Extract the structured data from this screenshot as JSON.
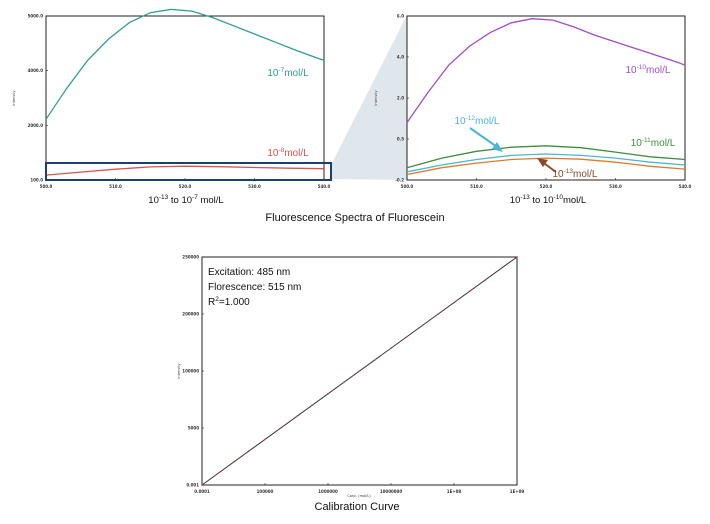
{
  "figure_title": "Fluorescence Spectra of Fluorescein",
  "chart_data": [
    {
      "type": "line",
      "caption": "10-13 to 10-7 mol/L",
      "caption_parts": {
        "a": "10",
        "a_exp": "-13",
        "mid": " to 10",
        "b_exp": "-7",
        "unit": " mol/L"
      },
      "xlim": [
        500,
        540
      ],
      "ylim": [
        0,
        5000
      ],
      "x_ticks": [
        "500.0",
        "510.0",
        "520.0",
        "530.0",
        "540.0"
      ],
      "y_ticks": [
        "5000.0",
        "4000.0",
        "2000.0",
        "100.0"
      ],
      "ylabel": "Intensity",
      "series": [
        {
          "name": "10-7mol/L",
          "base": "10",
          "exp": "-7",
          "unit": "mol/L",
          "color": "#2e9e8e",
          "x": [
            500,
            503,
            506,
            509,
            512,
            515,
            518,
            521,
            524,
            527,
            530,
            533,
            536,
            539,
            540
          ],
          "y": [
            1850,
            2800,
            3650,
            4300,
            4800,
            5100,
            5200,
            5150,
            4950,
            4700,
            4450,
            4200,
            3950,
            3720,
            3650
          ]
        },
        {
          "name": "10-8mol/L",
          "base": "10",
          "exp": "-8",
          "unit": "mol/L",
          "color": "#d9534f",
          "x": [
            500,
            505,
            510,
            515,
            520,
            525,
            530,
            535,
            540
          ],
          "y": [
            150,
            240,
            330,
            400,
            420,
            405,
            380,
            360,
            345
          ]
        }
      ]
    },
    {
      "type": "line",
      "caption": "10-13 to 10-10mol/L",
      "caption_parts": {
        "a": "10",
        "a_exp": "-13",
        "mid": " to 10",
        "b_exp": "-10",
        "unit": "mol/L"
      },
      "xlim": [
        500,
        540
      ],
      "ylim": [
        0,
        6
      ],
      "x_ticks": [
        "500.0",
        "510.0",
        "520.0",
        "530.0",
        "540.0"
      ],
      "y_ticks": [
        "6.0",
        "4.0",
        "2.0",
        "0.5",
        "-0.2"
      ],
      "ylabel": "Intensity",
      "series": [
        {
          "name": "10-10mol/L",
          "base": "10",
          "exp": "-10",
          "unit": "mol/L",
          "color": "#a64cc4",
          "x": [
            500,
            503,
            506,
            509,
            512,
            515,
            518,
            521,
            524,
            527,
            530,
            533,
            536,
            539,
            540
          ],
          "y": [
            2.1,
            3.2,
            4.2,
            4.9,
            5.4,
            5.75,
            5.9,
            5.85,
            5.6,
            5.3,
            5.05,
            4.8,
            4.55,
            4.3,
            4.2
          ]
        },
        {
          "name": "10-11mol/L",
          "base": "10",
          "exp": "-11",
          "unit": "mol/L",
          "color": "#3e8e3e",
          "x": [
            500,
            505,
            510,
            515,
            520,
            525,
            530,
            535,
            540
          ],
          "y": [
            0.45,
            0.8,
            1.05,
            1.2,
            1.25,
            1.18,
            1.02,
            0.85,
            0.75
          ]
        },
        {
          "name": "10-12mol/L",
          "base": "10",
          "exp": "-12",
          "unit": "mol/L",
          "color": "#4bb5d6",
          "x": [
            500,
            505,
            510,
            515,
            520,
            525,
            530,
            535,
            540
          ],
          "y": [
            0.3,
            0.55,
            0.75,
            0.9,
            0.95,
            0.9,
            0.8,
            0.65,
            0.55
          ]
        },
        {
          "name": "10-13mol/L",
          "base": "10",
          "exp": "-13",
          "unit": "mol/L",
          "color": "#e07b2a",
          "x": [
            500,
            505,
            510,
            515,
            520,
            525,
            530,
            535,
            540
          ],
          "y": [
            0.2,
            0.45,
            0.62,
            0.75,
            0.8,
            0.76,
            0.65,
            0.5,
            0.4
          ]
        }
      ]
    },
    {
      "type": "scatter",
      "title": "Calibration Curve",
      "xlim": [
        0,
        200000
      ],
      "ylim": [
        0,
        250000
      ],
      "x_ticks": [
        "0.0001",
        "100000",
        "1000000",
        "10000000",
        "1E+08",
        "1E+09"
      ],
      "y_ticks": [
        "250000",
        "200000",
        "100000",
        "5000",
        "0.001"
      ],
      "xlabel": "Conc. (mol/L)",
      "ylabel": "Intensity",
      "fit_color": "#333333",
      "point_color": "#e04040",
      "annotations": {
        "excitation": "Excitation: 485 nm",
        "fluorescence": "Florescence: 515 nm",
        "r2_prefix": "R",
        "r2_exp": "2",
        "r2_value": "=1.000"
      },
      "points": {
        "x": [
          0,
          10000,
          20000,
          30000,
          40000,
          50000,
          60000,
          70000,
          80000,
          90000,
          100000,
          110000,
          120000,
          130000,
          140000,
          150000,
          160000,
          170000,
          180000,
          190000,
          200000
        ],
        "y": [
          0,
          12500,
          25000,
          37500,
          50000,
          62500,
          75000,
          87500,
          100000,
          112500,
          125000,
          137500,
          150000,
          162500,
          175000,
          187500,
          200000,
          212500,
          225000,
          237500,
          250000
        ]
      }
    }
  ]
}
